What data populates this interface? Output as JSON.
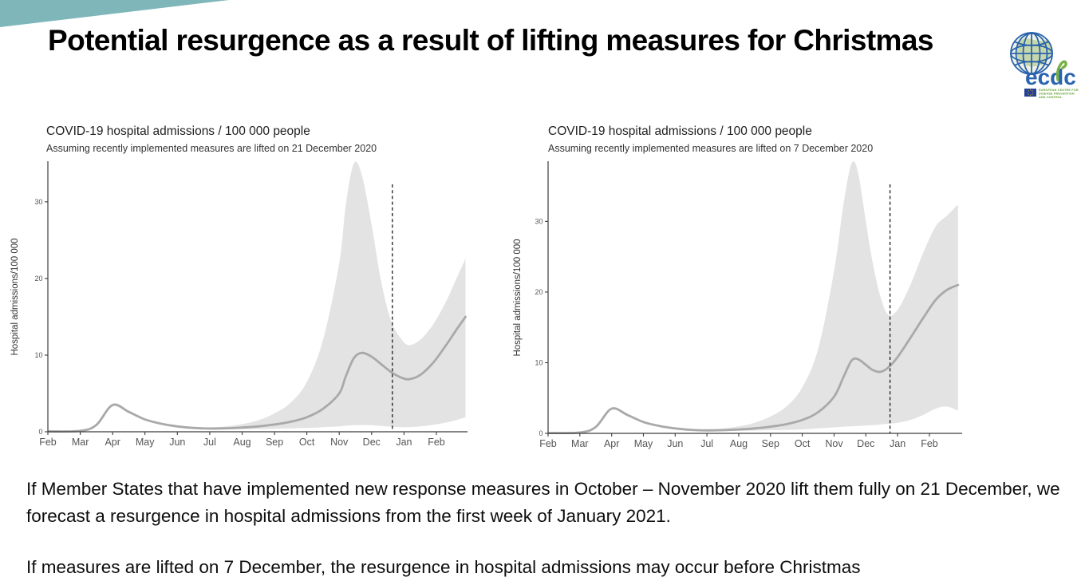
{
  "slide": {
    "title": "Potential resurgence as a result of lifting measures for Christmas",
    "accent_color": "#7eb6ba"
  },
  "logo": {
    "wordmark": "ecdc",
    "org_lines": [
      "EUROPEAN CENTRE FOR",
      "DISEASE PREVENTION",
      "AND CONTROL"
    ],
    "blue": "#2a63ae",
    "green": "#76b043",
    "land_green": "#c6d8ab",
    "flag_blue": "#243f94",
    "star_yellow": "#ffcc00"
  },
  "body": {
    "paragraph1": "If Member States that have implemented new response measures in October – November 2020 lift them fully on 21 December, we forecast a resurgence in hospital admissions from the first week of January 2021.",
    "paragraph2": "If measures are lifted on 7 December, the resurgence in hospital admissions may occur before Christmas"
  },
  "chart_data": [
    {
      "type": "area",
      "title": "COVID-19 hospital admissions / 100 000 people",
      "subtitle": "Assuming recently implemented measures are lifted on 21 December 2020",
      "ylabel": "Hospital admissions/100 000",
      "x_tick_labels": [
        "Feb",
        "Mar",
        "Apr",
        "May",
        "Jun",
        "Jul",
        "Aug",
        "Sep",
        "Oct",
        "Nov",
        "Dec",
        "Jan",
        "Feb"
      ],
      "y_ticks": [
        0,
        10,
        20,
        30
      ],
      "ylim": [
        0,
        35.2
      ],
      "x_span_months": 12.9,
      "vline_month": 10.64,
      "x": [
        0,
        1.0,
        1.5,
        2.0,
        2.5,
        3.0,
        3.5,
        4.0,
        4.5,
        5.0,
        5.5,
        6.0,
        6.5,
        7.0,
        7.5,
        8.0,
        8.5,
        9.0,
        9.2,
        9.45,
        9.7,
        10.0,
        10.3,
        10.6,
        10.9,
        11.15,
        11.5,
        11.9,
        12.3,
        12.6,
        12.9
      ],
      "mean": [
        0.05,
        0.12,
        0.9,
        3.5,
        2.6,
        1.6,
        1.05,
        0.7,
        0.5,
        0.42,
        0.45,
        0.55,
        0.7,
        0.95,
        1.3,
        1.9,
        3.0,
        5.0,
        7.2,
        9.6,
        10.3,
        9.8,
        8.8,
        7.8,
        7.1,
        6.85,
        7.4,
        9.0,
        11.3,
        13.2,
        15.0
      ],
      "lower": [
        0.02,
        0.08,
        0.8,
        3.3,
        2.4,
        1.5,
        0.95,
        0.6,
        0.42,
        0.33,
        0.32,
        0.33,
        0.35,
        0.4,
        0.45,
        0.5,
        0.6,
        0.7,
        0.78,
        0.85,
        0.88,
        0.85,
        0.75,
        0.65,
        0.6,
        0.6,
        0.7,
        0.9,
        1.2,
        1.5,
        1.9
      ],
      "upper": [
        0.08,
        0.16,
        1.0,
        3.6,
        2.7,
        1.75,
        1.15,
        0.8,
        0.62,
        0.58,
        0.7,
        1.0,
        1.5,
        2.4,
        3.8,
        6.5,
        12,
        22,
        29.5,
        35.0,
        33.5,
        27,
        19.5,
        14.5,
        12.2,
        11.3,
        12.0,
        14.0,
        17.0,
        19.8,
        22.6
      ],
      "colors": {
        "band": "#e3e3e3",
        "line": "#a9a9a9",
        "vline": "#1a1a1a",
        "axis": "#3c3c3c",
        "tick_label": "#555555"
      }
    },
    {
      "type": "area",
      "title": "COVID-19 hospital admissions / 100 000 people",
      "subtitle": "Assuming recently implemented measures are lifted on 7 December 2020",
      "ylabel": "Hospital admissions/100 000",
      "x_tick_labels": [
        "Feb",
        "Mar",
        "Apr",
        "May",
        "Jun",
        "Jul",
        "Aug",
        "Sep",
        "Oct",
        "Nov",
        "Dec",
        "Jan",
        "Feb"
      ],
      "y_ticks": [
        0,
        10,
        20,
        30
      ],
      "ylim": [
        0,
        38.4
      ],
      "x_span_months": 12.9,
      "vline_month": 10.76,
      "x": [
        0,
        1.0,
        1.5,
        2.0,
        2.5,
        3.0,
        3.5,
        4.0,
        4.5,
        5.0,
        5.5,
        6.0,
        6.5,
        7.0,
        7.5,
        8.0,
        8.5,
        9.0,
        9.3,
        9.55,
        9.75,
        10.0,
        10.2,
        10.45,
        10.7,
        11.0,
        11.4,
        11.8,
        12.2,
        12.55,
        12.9
      ],
      "mean": [
        0.05,
        0.12,
        0.9,
        3.5,
        2.6,
        1.6,
        1.05,
        0.7,
        0.5,
        0.42,
        0.45,
        0.55,
        0.7,
        0.95,
        1.3,
        1.9,
        3.0,
        5.2,
        8.0,
        10.3,
        10.5,
        9.7,
        9.0,
        8.7,
        9.3,
        10.8,
        13.5,
        16.3,
        18.9,
        20.3,
        21.0
      ],
      "lower": [
        0.02,
        0.08,
        0.8,
        3.3,
        2.4,
        1.5,
        0.95,
        0.6,
        0.42,
        0.33,
        0.32,
        0.35,
        0.4,
        0.45,
        0.5,
        0.55,
        0.7,
        0.85,
        0.95,
        1.0,
        1.05,
        1.1,
        1.15,
        1.25,
        1.35,
        1.5,
        1.9,
        2.6,
        3.5,
        3.8,
        3.2
      ],
      "upper": [
        0.08,
        0.16,
        1.0,
        3.6,
        2.7,
        1.75,
        1.15,
        0.8,
        0.62,
        0.58,
        0.7,
        1.0,
        1.5,
        2.4,
        3.8,
        6.5,
        12,
        23,
        32.5,
        38.2,
        37.0,
        30,
        24.5,
        19.5,
        16.8,
        17.5,
        21.0,
        25.5,
        29.3,
        30.8,
        32.4
      ],
      "colors": {
        "band": "#e3e3e3",
        "line": "#a9a9a9",
        "vline": "#1a1a1a",
        "axis": "#3c3c3c",
        "tick_label": "#555555"
      }
    }
  ]
}
